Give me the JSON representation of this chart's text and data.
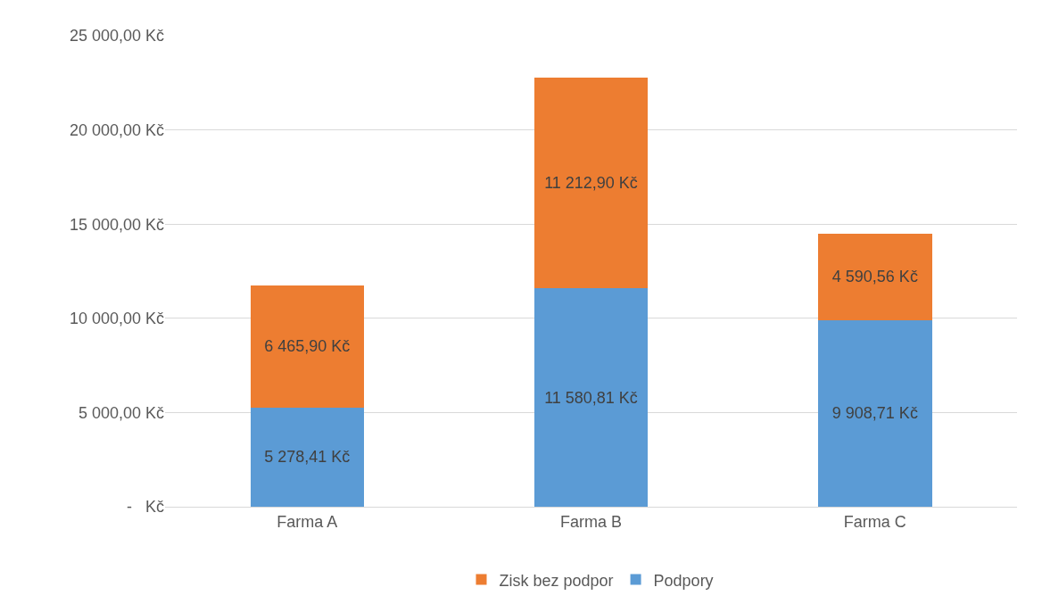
{
  "chart_data": {
    "type": "bar",
    "stacked": true,
    "categories": [
      "Farma A",
      "Farma B",
      "Farma C"
    ],
    "series": [
      {
        "name": "Podpory",
        "color": "#5b9bd5",
        "values": [
          5278.41,
          11580.81,
          9908.71
        ],
        "value_labels": [
          "5 278,41 Kč",
          "11 580,81 Kč",
          "9 908,71 Kč"
        ]
      },
      {
        "name": "Zisk bez podpor",
        "color": "#ed7d31",
        "values": [
          6465.9,
          11212.9,
          4590.56
        ],
        "value_labels": [
          "6 465,90 Kč",
          "11 212,90 Kč",
          "4 590,56 Kč"
        ]
      }
    ],
    "ylim": [
      0,
      25000
    ],
    "yticks": [
      {
        "value": 0,
        "label": "-   Kč"
      },
      {
        "value": 5000,
        "label": "5 000,00 Kč"
      },
      {
        "value": 10000,
        "label": "10 000,00 Kč"
      },
      {
        "value": 15000,
        "label": "15 000,00 Kč"
      },
      {
        "value": 20000,
        "label": "20 000,00 Kč"
      },
      {
        "value": 25000,
        "label": "25 000,00 Kč"
      }
    ],
    "grid": "y",
    "legend": "bottom"
  }
}
